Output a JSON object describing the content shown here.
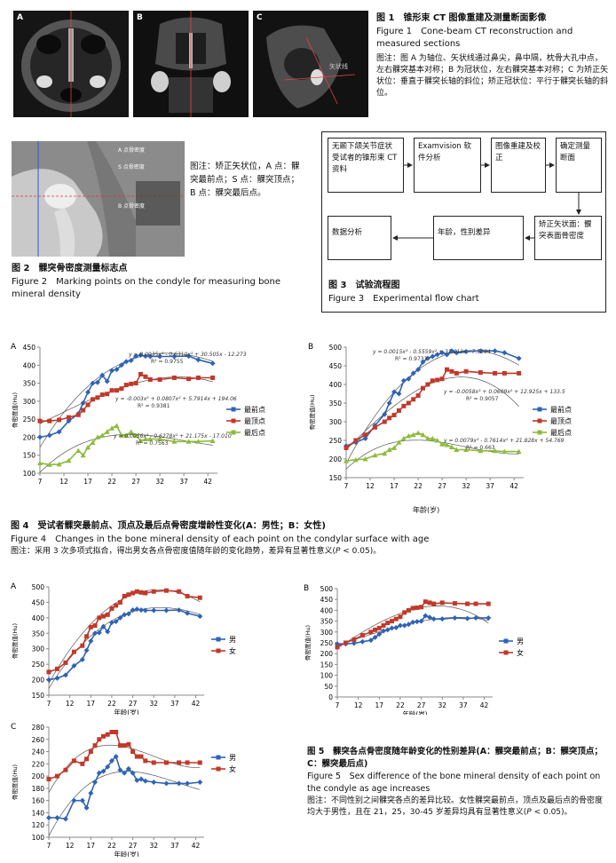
{
  "fig1": {
    "panels": [
      "A",
      "B",
      "C"
    ],
    "c_annotation": "矢状线",
    "title": "图 1　锥形束 CT 图像重建及测量断面影像",
    "title_en": "Figure 1　Cone-beam CT reconstruction and measured sections",
    "note": "图注：图 A 为轴位、矢状线通过鼻尖，鼻中隔，枕骨大孔中点，左右髁突基本对称；B 为冠状位，左右髁突基本对称；C 为矫正矢状位：垂直于髁突长轴的斜位；矫正冠状位：平行于髁突长轴的斜位。"
  },
  "fig2": {
    "labels": [
      "A 点骨密度",
      "S 点骨密度",
      "B 点骨密度"
    ],
    "note": "图注：矫正矢状位，A 点：髁突最前点；S 点：髁突顶点；B 点：髁突最后点。",
    "title": "图 2　髁突骨密度测量标志点",
    "title_en": "Figure 2　Marking points on the condyle for measuring bone mineral density"
  },
  "fig3": {
    "boxes": [
      "无颞下颌关节症状受试者的锥形束 CT 资料",
      "Examvision 软件分析",
      "图像重建及校正",
      "确定测量断面",
      "矫正矢状面：髁突表面骨密度",
      "年龄，性别差异",
      "数据分析"
    ],
    "title": "图 3　试验流程图",
    "title_en": "Figure 3　Experimental flow chart"
  },
  "fig4": {
    "title": "图 4　受试者髁突最前点、顶点及最后点骨密度增龄性变化(A：男性；B：女性)",
    "title_en": "Figure 4　Changes in the bone mineral density of each point on the condylar surface with age",
    "note_pre": "图注：采用 3 次多项式拟合，得出男女各点骨密度值随年龄的变化趋势，差异有显著性意义(",
    "note_p": "P",
    "note_post": " < 0.05)。"
  },
  "fig5": {
    "title": "图 5　髁突各点骨密度随年龄变化的性别差异(A：髁突最前点；B：髁突顶点；C：髁突最后点)",
    "title_en": "Figure 5　Sex difference of the bone mineral density of each point on the condyle as age increases",
    "note_pre": "图注：不同性别之间髁突各点的差异比较。女性髁突最前点，顶点及最后点的骨密度均大于男性，且在 21，25，30-45 岁差异均具有显著性意义(",
    "note_p": "P",
    "note_post": " < 0.05)。"
  },
  "chart_data": [
    {
      "id": "4A",
      "type": "line",
      "label": "A",
      "xlabel": "年龄(岁)",
      "ylabel": "骨密度值(Hu)",
      "xlim": [
        7,
        44
      ],
      "ylim": [
        100,
        450
      ],
      "xticks": [
        7,
        12,
        17,
        22,
        27,
        32,
        37,
        42
      ],
      "yticks": [
        100,
        150,
        200,
        250,
        300,
        350,
        400,
        450
      ],
      "x": [
        7,
        9,
        11,
        13,
        15,
        16,
        17,
        18,
        19,
        20,
        21,
        22,
        23,
        24,
        25,
        26,
        27,
        28,
        29,
        30,
        32,
        35,
        38,
        40,
        43
      ],
      "series": [
        {
          "name": "最前点",
          "color": "#2f63b5",
          "marker": "diamond",
          "values": [
            200,
            205,
            215,
            245,
            265,
            295,
            325,
            350,
            352,
            372,
            355,
            385,
            388,
            400,
            410,
            413,
            425,
            428,
            425,
            424,
            424,
            424,
            425,
            415,
            405
          ],
          "fit": [
            0.0035,
            -0.631,
            30.505,
            -12.273
          ],
          "equation": "y = 0.0035x³ - 0.6310x² + 30.505x - 12.273",
          "r2": "R² = 0.9755"
        },
        {
          "name": "最顶点",
          "color": "#c0392b",
          "marker": "square",
          "values": [
            245,
            245,
            248,
            255,
            262,
            275,
            290,
            305,
            310,
            318,
            320,
            330,
            330,
            335,
            345,
            348,
            350,
            375,
            368,
            360,
            360,
            365,
            362,
            365,
            365
          ],
          "fit": [
            -0.003,
            0.0807,
            5.7914,
            194.06
          ],
          "equation": "y = -0.003x³ + 0.0807x² + 5.7914x + 194.06",
          "r2": "R² = 0.9381"
        },
        {
          "name": "最后点",
          "color": "#8dbb3c",
          "marker": "triangle",
          "values": [
            128,
            124,
            125,
            135,
            163,
            150,
            172,
            185,
            200,
            205,
            215,
            225,
            232,
            205,
            205,
            215,
            205,
            190,
            195,
            195,
            195,
            188,
            188,
            188,
            190
          ],
          "fit": [
            0.0056,
            -0.6278,
            21.175,
            -17.01
          ],
          "equation": "y = 0.0056x³ - 0.6278x² + 21.175x - 17.010",
          "r2": "R² = 0.7563"
        }
      ]
    },
    {
      "id": "4B",
      "type": "line",
      "label": "B",
      "xlabel": "年龄(岁)",
      "ylabel": "骨密度值(Hu)",
      "xlim": [
        7,
        44
      ],
      "ylim": [
        150,
        500
      ],
      "xticks": [
        7,
        12,
        17,
        22,
        27,
        32,
        37,
        42
      ],
      "yticks": [
        150,
        200,
        250,
        300,
        350,
        400,
        450,
        500
      ],
      "x": [
        7,
        9,
        11,
        13,
        15,
        16,
        17,
        18,
        19,
        20,
        21,
        22,
        23,
        24,
        25,
        26,
        27,
        28,
        29,
        30,
        32,
        35,
        38,
        40,
        43
      ],
      "series": [
        {
          "name": "最前点",
          "color": "#2f63b5",
          "marker": "diamond",
          "values": [
            235,
            245,
            255,
            290,
            320,
            350,
            380,
            375,
            410,
            415,
            430,
            440,
            460,
            470,
            475,
            480,
            485,
            480,
            490,
            485,
            488,
            490,
            490,
            485,
            470
          ],
          "fit": [
            0.0015,
            -0.5559,
            31.813,
            -7.5894
          ],
          "equation": "y = 0.0015x³ - 0.5559x² + 31.813x - 7.5894",
          "r2": "R² = 0.9733"
        },
        {
          "name": "最顶点",
          "color": "#c0392b",
          "marker": "square",
          "values": [
            230,
            250,
            265,
            285,
            300,
            310,
            318,
            330,
            342,
            350,
            360,
            370,
            390,
            400,
            410,
            412,
            415,
            440,
            435,
            430,
            435,
            432,
            430,
            430,
            430
          ],
          "fit": [
            -0.0058,
            0.0609,
            12.925,
            133.5
          ],
          "equation": "y = -0.0058x³ + 0.0609x² + 12.925x + 133.5",
          "r2": "R² = 0.9057"
        },
        {
          "name": "最后点",
          "color": "#8dbb3c",
          "marker": "triangle",
          "values": [
            195,
            198,
            200,
            210,
            215,
            225,
            230,
            245,
            255,
            262,
            265,
            270,
            265,
            255,
            255,
            250,
            240,
            238,
            232,
            225,
            225,
            222,
            222,
            220,
            220
          ],
          "fit": [
            0.0079,
            -0.7614,
            21.828,
            54.769
          ],
          "equation": "y = 0.0079x³ - 0.7614x² + 21.828x + 54.769",
          "r2": "R² = 0.663"
        }
      ]
    },
    {
      "id": "5A",
      "type": "line",
      "label": "A",
      "xlabel": "年龄(岁)",
      "ylabel": "骨密度值(Hu)",
      "xlim": [
        7,
        44
      ],
      "ylim": [
        150,
        500
      ],
      "xticks": [
        7,
        12,
        17,
        22,
        27,
        32,
        37,
        42
      ],
      "yticks": [
        150,
        200,
        250,
        300,
        350,
        400,
        450,
        500
      ],
      "x": [
        7,
        9,
        11,
        13,
        15,
        16,
        17,
        18,
        19,
        20,
        21,
        22,
        23,
        24,
        25,
        26,
        27,
        28,
        29,
        30,
        32,
        35,
        38,
        40,
        43
      ],
      "series": [
        {
          "name": "男",
          "color": "#2f63b5",
          "marker": "diamond",
          "values": [
            200,
            205,
            215,
            245,
            265,
            295,
            325,
            350,
            352,
            372,
            355,
            385,
            388,
            400,
            410,
            413,
            425,
            428,
            425,
            424,
            424,
            424,
            425,
            415,
            405
          ],
          "fit": [
            0.0035,
            -0.631,
            30.505,
            -12.273
          ]
        },
        {
          "name": "女",
          "color": "#c0392b",
          "marker": "square",
          "values": [
            225,
            235,
            255,
            290,
            310,
            340,
            370,
            375,
            400,
            405,
            410,
            430,
            440,
            450,
            470,
            475,
            480,
            485,
            482,
            480,
            485,
            488,
            485,
            470,
            465
          ],
          "fit": [
            0.0015,
            -0.5559,
            31.813,
            -7.5894
          ]
        }
      ]
    },
    {
      "id": "5B",
      "type": "line",
      "label": "B",
      "xlabel": "年龄(岁)",
      "ylabel": "骨密度值(Hu)",
      "xlim": [
        7,
        44
      ],
      "ylim": [
        0,
        500
      ],
      "xticks": [
        7,
        12,
        17,
        22,
        27,
        32,
        37,
        42
      ],
      "yticks": [
        0,
        50,
        100,
        150,
        200,
        250,
        300,
        350,
        400,
        450,
        500
      ],
      "x": [
        7,
        9,
        11,
        13,
        15,
        16,
        17,
        18,
        19,
        20,
        21,
        22,
        23,
        24,
        25,
        26,
        27,
        28,
        29,
        30,
        32,
        35,
        38,
        40,
        43
      ],
      "series": [
        {
          "name": "男",
          "color": "#2f63b5",
          "marker": "diamond",
          "values": [
            245,
            245,
            248,
            255,
            262,
            275,
            290,
            305,
            310,
            318,
            320,
            330,
            330,
            335,
            345,
            348,
            350,
            375,
            368,
            360,
            360,
            365,
            362,
            365,
            365
          ],
          "fit": [
            -0.003,
            0.0807,
            5.7914,
            194.06
          ]
        },
        {
          "name": "女",
          "color": "#c0392b",
          "marker": "square",
          "values": [
            230,
            250,
            265,
            285,
            300,
            310,
            318,
            330,
            342,
            350,
            360,
            370,
            390,
            400,
            410,
            412,
            415,
            440,
            435,
            430,
            435,
            432,
            430,
            430,
            430
          ],
          "fit": [
            -0.0058,
            0.0609,
            12.925,
            133.5
          ]
        }
      ]
    },
    {
      "id": "5C",
      "type": "line",
      "label": "C",
      "xlabel": "年龄(岁)",
      "ylabel": "骨密度值(Hu)",
      "xlim": [
        7,
        44
      ],
      "ylim": [
        100,
        280
      ],
      "xticks": [
        7,
        12,
        17,
        22,
        27,
        32,
        37,
        42
      ],
      "yticks": [
        100,
        120,
        140,
        160,
        180,
        200,
        220,
        240,
        260,
        280
      ],
      "x": [
        7,
        9,
        11,
        13,
        15,
        16,
        17,
        18,
        19,
        20,
        21,
        22,
        23,
        24,
        25,
        26,
        27,
        28,
        29,
        30,
        32,
        35,
        38,
        40,
        43
      ],
      "series": [
        {
          "name": "男",
          "color": "#2f63b5",
          "marker": "diamond",
          "values": [
            132,
            132,
            130,
            160,
            160,
            148,
            172,
            190,
            205,
            208,
            215,
            225,
            232,
            210,
            205,
            212,
            205,
            193,
            195,
            192,
            190,
            188,
            188,
            188,
            190
          ],
          "fit": [
            0.0056,
            -0.6278,
            21.175,
            -17.01
          ]
        },
        {
          "name": "女",
          "color": "#c0392b",
          "marker": "square",
          "values": [
            195,
            200,
            210,
            225,
            220,
            228,
            240,
            250,
            260,
            265,
            268,
            272,
            272,
            250,
            250,
            252,
            240,
            232,
            232,
            225,
            222,
            222,
            222,
            222,
            222
          ],
          "fit": [
            0.0079,
            -0.7614,
            21.828,
            54.769
          ]
        }
      ]
    }
  ]
}
